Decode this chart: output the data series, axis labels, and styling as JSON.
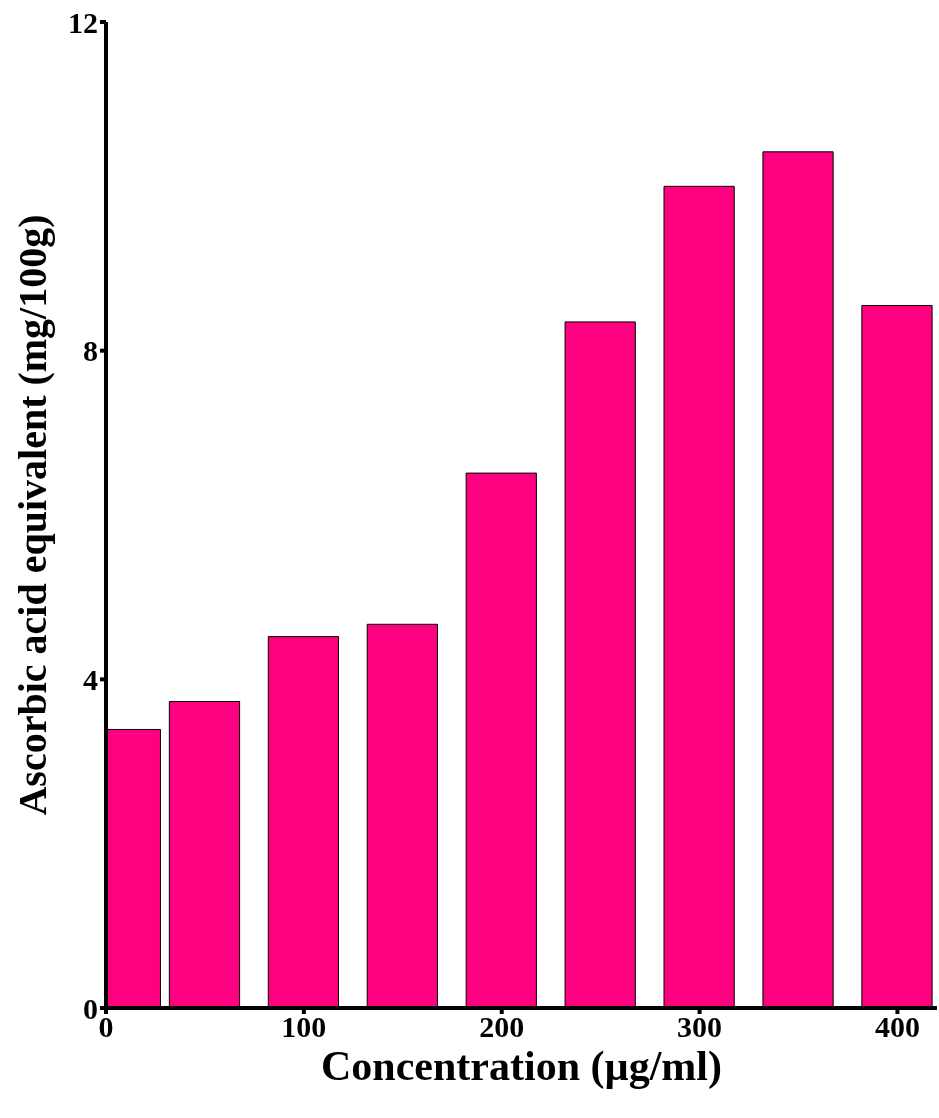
{
  "chart_data": {
    "type": "bar",
    "xlabel": "Concentration (µg/ml)",
    "ylabel": "Ascorbic acid equivalent (mg/100g)",
    "x": [
      10,
      50,
      100,
      150,
      200,
      250,
      300,
      350,
      400
    ],
    "values": [
      3.39,
      3.73,
      4.52,
      4.67,
      6.51,
      8.35,
      10.0,
      10.42,
      8.55
    ],
    "color": "#ff0080",
    "xlim": [
      0,
      420
    ],
    "xticks": [
      0,
      100,
      200,
      300,
      400
    ],
    "ylim": [
      0,
      12
    ],
    "yticks": [
      0,
      4,
      8,
      12
    ],
    "grid": false,
    "legend": false
  }
}
